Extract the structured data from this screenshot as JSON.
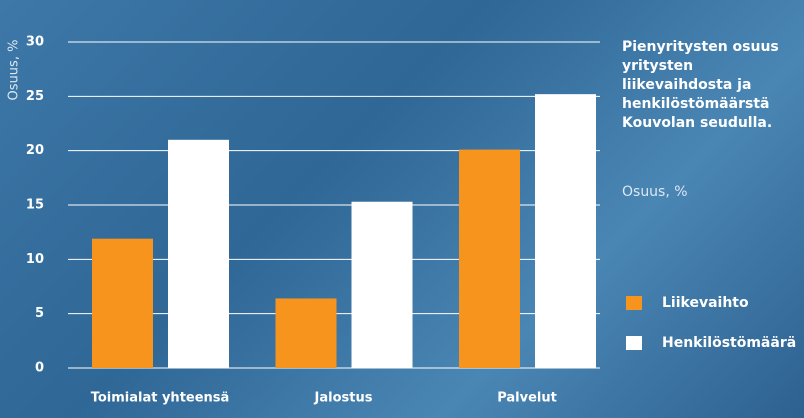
{
  "chart_data": {
    "type": "bar",
    "title": "Pienyritysten osuus yritysten liikevaihdosta ja henkilöstömäärstä Kouvolan seudulla.",
    "subtitle": "Osuus, %",
    "y_label": "Osuus, %",
    "categories": [
      "Toimialat yhteensä",
      "Jalostus",
      "Palvelut"
    ],
    "series": [
      {
        "name": "Liikevaihto",
        "color": "#f7941d",
        "values": [
          11.9,
          6.4,
          20.1
        ]
      },
      {
        "name": "Henkilöstömäärä",
        "color": "#ffffff",
        "values": [
          21.0,
          15.3,
          25.2
        ]
      }
    ],
    "ylim": [
      0,
      30
    ],
    "yticks": [
      0,
      5,
      10,
      15,
      20,
      25,
      30
    ],
    "grid": true
  }
}
